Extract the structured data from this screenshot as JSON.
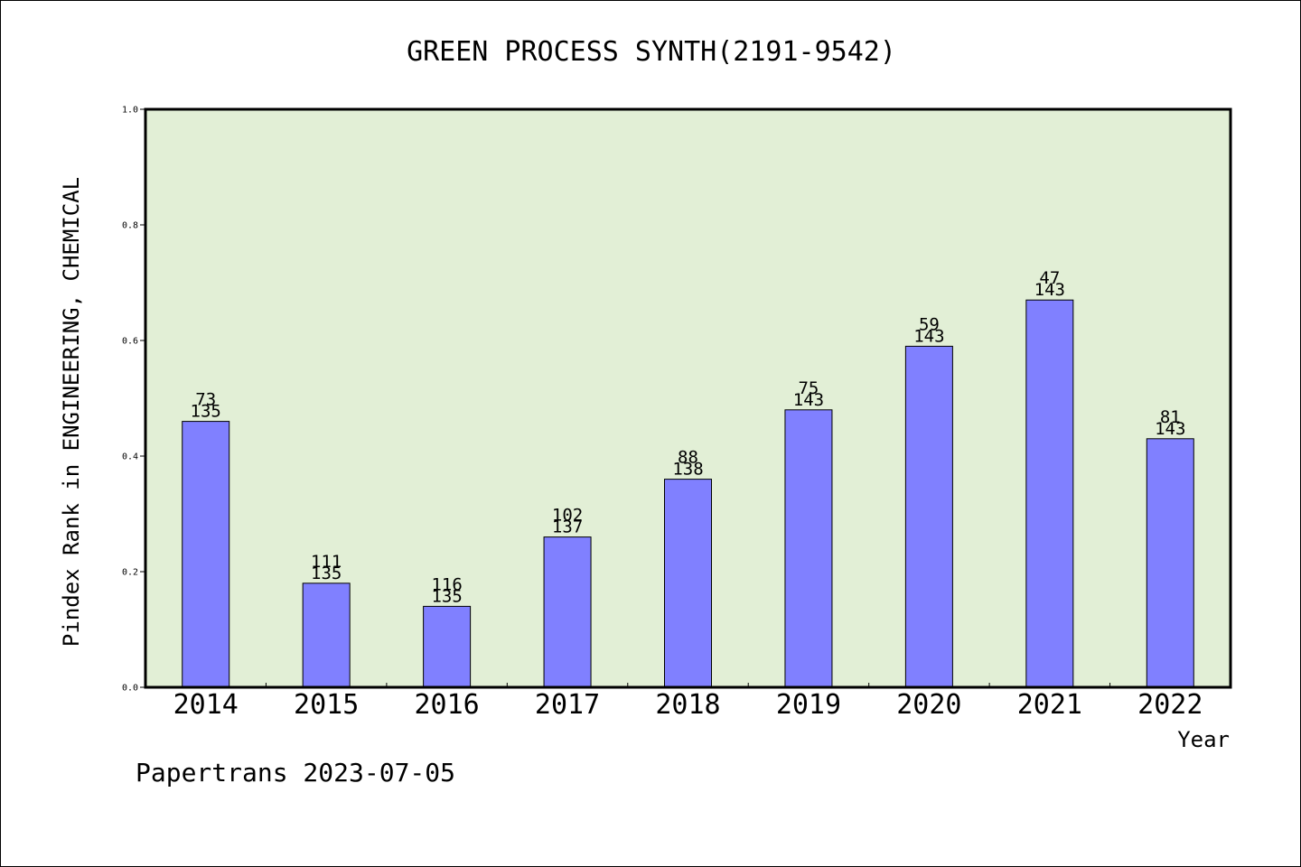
{
  "chart_data": {
    "type": "bar",
    "title": "GREEN PROCESS SYNTH(2191-9542)",
    "xlabel": "Year",
    "ylabel": "Pindex Rank in ENGINEERING, CHEMICAL",
    "ylim": [
      0,
      1.0
    ],
    "yticks": [
      "0.0",
      "0.2",
      "0.4",
      "0.6",
      "0.8",
      "1.0"
    ],
    "grid": false,
    "categories": [
      "2014",
      "2015",
      "2016",
      "2017",
      "2018",
      "2019",
      "2020",
      "2021",
      "2022"
    ],
    "values": [
      0.46,
      0.18,
      0.14,
      0.26,
      0.36,
      0.48,
      0.59,
      0.67,
      0.43
    ],
    "rank_labels": [
      "73",
      "111",
      "116",
      "102",
      "88",
      "75",
      "59",
      "47",
      "81"
    ],
    "total_labels": [
      "135",
      "135",
      "135",
      "137",
      "138",
      "143",
      "143",
      "143",
      "143"
    ],
    "footer": "Papertrans 2023-07-05",
    "colors": {
      "plot_background": "#e2efd6",
      "bar_fill": "#8080ff",
      "bar_stroke": "#000000"
    }
  }
}
